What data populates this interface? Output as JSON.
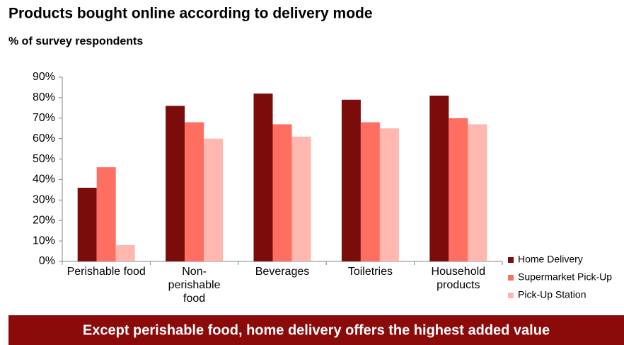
{
  "chart_data": {
    "type": "bar",
    "title": "Products bought online according to delivery  mode",
    "subtitle": "% of survey respondents",
    "annotation": "Except perishable food, home delivery offers the highest added value",
    "categories": [
      "Perishable food",
      "Non-perishable food",
      "Beverages",
      "Toiletries",
      "Household products"
    ],
    "series": [
      {
        "name": "Home Delivery",
        "color": "#7b0c0c",
        "values": [
          36,
          76,
          82,
          79,
          81
        ]
      },
      {
        "name": "Supermarket Pick-Up",
        "color": "#ff6f61",
        "values": [
          46,
          68,
          67,
          68,
          70
        ]
      },
      {
        "name": "Pick-Up Station",
        "color": "#ffb7b0",
        "values": [
          8,
          60,
          61,
          65,
          67
        ]
      }
    ],
    "ylim": [
      0,
      90
    ],
    "yticks": [
      {
        "value": 0,
        "label": "0%"
      },
      {
        "value": 10,
        "label": "10%"
      },
      {
        "value": 20,
        "label": "20%"
      },
      {
        "value": 30,
        "label": "30%"
      },
      {
        "value": 40,
        "label": "40%"
      },
      {
        "value": 50,
        "label": "50%"
      },
      {
        "value": 60,
        "label": "60%"
      },
      {
        "value": 70,
        "label": "70%"
      },
      {
        "value": 80,
        "label": "80%"
      },
      {
        "value": 90,
        "label": "90%"
      }
    ],
    "grid": false,
    "legend": "right"
  }
}
